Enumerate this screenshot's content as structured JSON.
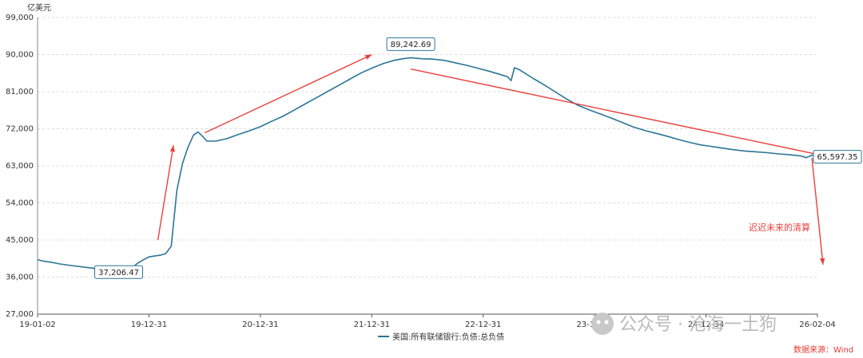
{
  "chart_data": {
    "type": "line",
    "unit_label": "亿美元",
    "y_ticks": [
      "27,000",
      "36,000",
      "45,000",
      "54,000",
      "63,000",
      "72,000",
      "81,000",
      "90,000",
      "99,000"
    ],
    "ylim": [
      27000,
      99000
    ],
    "x_ticks": [
      "19-01-02",
      "19-12-31",
      "20-12-31",
      "21-12-31",
      "22-12-31",
      "23-12-31",
      "24-12-34",
      "26-02-04"
    ],
    "grid": true,
    "series": [
      {
        "name": "美国:所有联储银行:负债:总负债",
        "color": "#2b7596",
        "points": [
          [
            0,
            40200
          ],
          [
            0.05,
            39900
          ],
          [
            0.12,
            39600
          ],
          [
            0.2,
            39200
          ],
          [
            0.3,
            38800
          ],
          [
            0.45,
            38300
          ],
          [
            0.6,
            37800
          ],
          [
            0.72,
            37400
          ],
          [
            0.8,
            37206.47
          ],
          [
            0.85,
            38300
          ],
          [
            0.9,
            39400
          ],
          [
            0.95,
            40200
          ],
          [
            1.0,
            40900
          ],
          [
            1.05,
            41100
          ],
          [
            1.1,
            41300
          ],
          [
            1.15,
            41700
          ],
          [
            1.2,
            43500
          ],
          [
            1.25,
            57000
          ],
          [
            1.3,
            63500
          ],
          [
            1.35,
            67500
          ],
          [
            1.4,
            70500
          ],
          [
            1.44,
            71200
          ],
          [
            1.48,
            70200
          ],
          [
            1.52,
            69000
          ],
          [
            1.6,
            69000
          ],
          [
            1.7,
            69600
          ],
          [
            1.8,
            70600
          ],
          [
            1.9,
            71500
          ],
          [
            2.0,
            72500
          ],
          [
            2.1,
            73800
          ],
          [
            2.2,
            75000
          ],
          [
            2.3,
            76500
          ],
          [
            2.4,
            78000
          ],
          [
            2.5,
            79500
          ],
          [
            2.6,
            81000
          ],
          [
            2.7,
            82500
          ],
          [
            2.8,
            84000
          ],
          [
            2.9,
            85500
          ],
          [
            3.0,
            86700
          ],
          [
            3.1,
            87800
          ],
          [
            3.2,
            88600
          ],
          [
            3.28,
            89000
          ],
          [
            3.35,
            89242.69
          ],
          [
            3.45,
            89000
          ],
          [
            3.55,
            88900
          ],
          [
            3.65,
            88600
          ],
          [
            3.75,
            88000
          ],
          [
            3.85,
            87400
          ],
          [
            3.95,
            86700
          ],
          [
            4.05,
            86000
          ],
          [
            4.15,
            85200
          ],
          [
            4.22,
            84600
          ],
          [
            4.25,
            83700
          ],
          [
            4.28,
            86800
          ],
          [
            4.32,
            86400
          ],
          [
            4.38,
            85400
          ],
          [
            4.45,
            84200
          ],
          [
            4.55,
            82600
          ],
          [
            4.65,
            80900
          ],
          [
            4.75,
            79200
          ],
          [
            4.85,
            77700
          ],
          [
            4.95,
            76600
          ],
          [
            5.05,
            75600
          ],
          [
            5.15,
            74600
          ],
          [
            5.25,
            73500
          ],
          [
            5.35,
            72400
          ],
          [
            5.45,
            71600
          ],
          [
            5.55,
            70900
          ],
          [
            5.65,
            70200
          ],
          [
            5.75,
            69400
          ],
          [
            5.85,
            68700
          ],
          [
            5.95,
            68100
          ],
          [
            6.05,
            67700
          ],
          [
            6.15,
            67300
          ],
          [
            6.25,
            66900
          ],
          [
            6.35,
            66600
          ],
          [
            6.45,
            66400
          ],
          [
            6.55,
            66200
          ],
          [
            6.65,
            65900
          ],
          [
            6.75,
            65700
          ],
          [
            6.85,
            65400
          ],
          [
            6.9,
            65000
          ],
          [
            6.95,
            65597.35
          ],
          [
            7.0,
            65600
          ]
        ]
      }
    ],
    "callouts": [
      {
        "value": "37,206.47",
        "x": 0.8,
        "y": 37206.47
      },
      {
        "value": "89,242.69",
        "x": 3.35,
        "y": 89242.69
      },
      {
        "value": "65,597.35",
        "x": 6.95,
        "y": 65597.35
      }
    ],
    "arrows": [
      {
        "from": [
          1.08,
          45000
        ],
        "to": [
          1.22,
          68000
        ]
      },
      {
        "from": [
          1.5,
          71000
        ],
        "to": [
          3.0,
          90000
        ]
      },
      {
        "from": [
          3.35,
          86500
        ],
        "to": [
          7.05,
          65500
        ]
      },
      {
        "from": [
          6.95,
          65000
        ],
        "to": [
          7.05,
          39000
        ]
      }
    ],
    "annotation": "迟迟未来的清算",
    "legend_position": "bottom"
  },
  "watermark": "公众号 · 沧海一土狗",
  "source": "数据来源：Wind"
}
